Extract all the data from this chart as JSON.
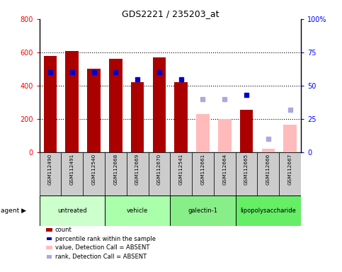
{
  "title": "GDS2221 / 235203_at",
  "samples": [
    "GSM112490",
    "GSM112491",
    "GSM112540",
    "GSM112668",
    "GSM112669",
    "GSM112670",
    "GSM112541",
    "GSM112661",
    "GSM112664",
    "GSM112665",
    "GSM112666",
    "GSM112667"
  ],
  "groups": [
    {
      "label": "untreated",
      "color": "#ccffcc",
      "indices": [
        0,
        1,
        2
      ]
    },
    {
      "label": "vehicle",
      "color": "#aaffaa",
      "indices": [
        3,
        4,
        5
      ]
    },
    {
      "label": "galectin-1",
      "color": "#88ee88",
      "indices": [
        6,
        7,
        8
      ]
    },
    {
      "label": "lipopolysaccharide",
      "color": "#66ee66",
      "indices": [
        9,
        10,
        11
      ]
    }
  ],
  "bar_values": [
    580,
    610,
    500,
    560,
    420,
    570,
    420,
    null,
    null,
    255,
    null,
    null
  ],
  "bar_absent_values": [
    null,
    null,
    null,
    null,
    null,
    null,
    null,
    230,
    200,
    null,
    20,
    165
  ],
  "percentile_present": [
    60,
    60,
    60,
    60,
    55,
    60,
    55,
    null,
    null,
    43,
    null,
    null
  ],
  "percentile_absent": [
    null,
    null,
    null,
    null,
    null,
    null,
    null,
    40,
    40,
    null,
    10,
    32
  ],
  "ylim_left": [
    0,
    800
  ],
  "ylim_right": [
    0,
    100
  ],
  "yticks_left": [
    0,
    200,
    400,
    600,
    800
  ],
  "yticks_right": [
    0,
    25,
    50,
    75,
    100
  ],
  "bar_color_present": "#aa0000",
  "bar_color_absent": "#ffbbbb",
  "dot_color_present": "#0000cc",
  "dot_color_absent": "#aaaadd",
  "sample_bg": "#cccccc",
  "grid_dotted_at": [
    200,
    400,
    600
  ]
}
